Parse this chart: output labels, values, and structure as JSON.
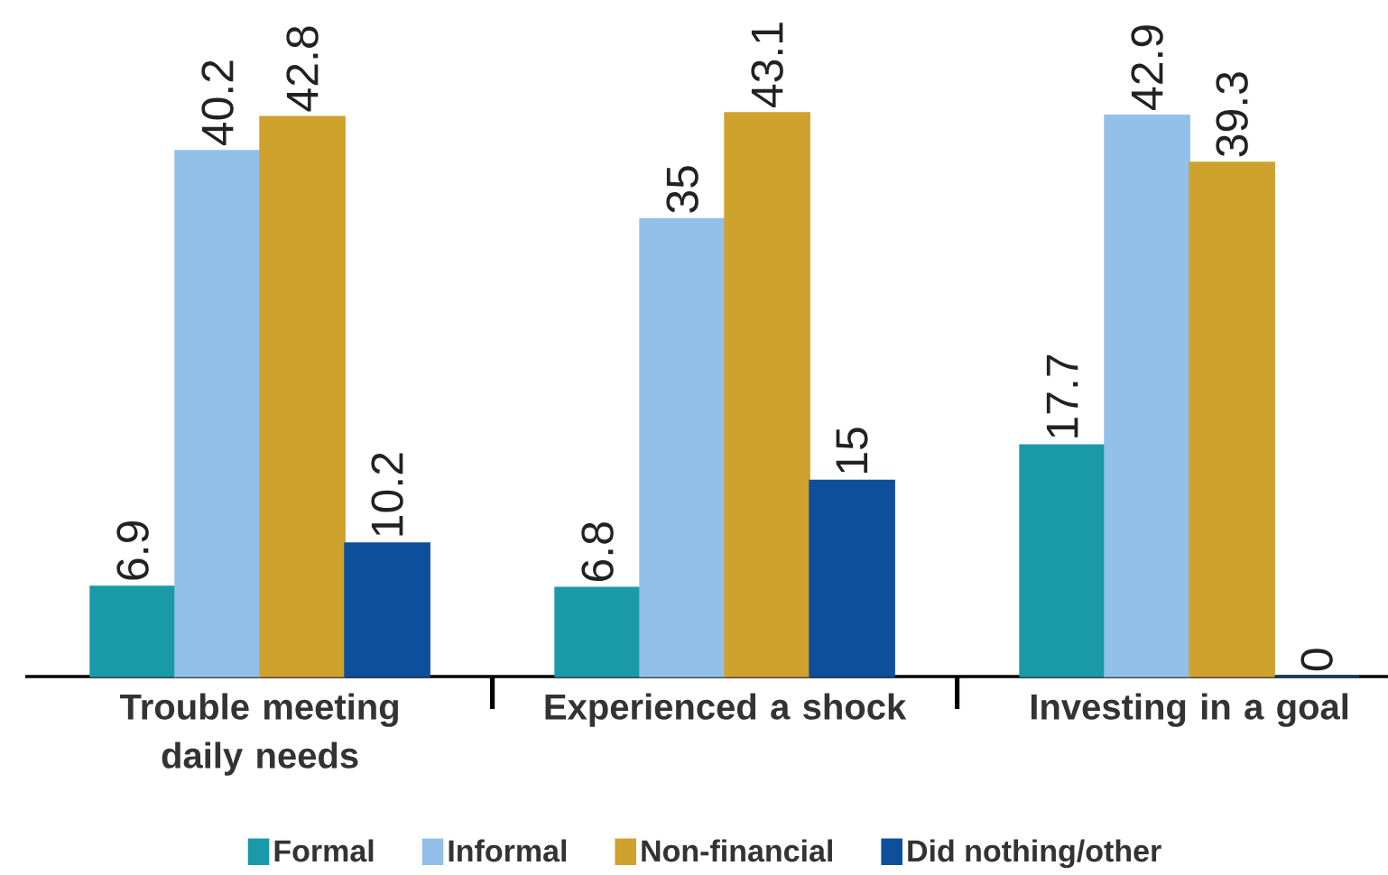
{
  "chart_data": {
    "type": "bar",
    "categories": [
      "Trouble meeting daily needs",
      "Experienced a shock",
      "Investing in a goal"
    ],
    "series": [
      {
        "name": "Formal",
        "color": "#1a9aa8",
        "values": [
          6.9,
          6.8,
          17.7
        ]
      },
      {
        "name": "Informal",
        "color": "#92c0e8",
        "values": [
          40.2,
          35,
          42.9
        ]
      },
      {
        "name": "Non-financial",
        "color": "#cfa22e",
        "values": [
          42.8,
          43.1,
          39.3
        ]
      },
      {
        "name": "Did nothing/other",
        "color": "#0e4f9c",
        "values": [
          10.2,
          15,
          0
        ]
      }
    ],
    "data_labels": true,
    "legend": "bottom",
    "tick_labels": "x"
  }
}
